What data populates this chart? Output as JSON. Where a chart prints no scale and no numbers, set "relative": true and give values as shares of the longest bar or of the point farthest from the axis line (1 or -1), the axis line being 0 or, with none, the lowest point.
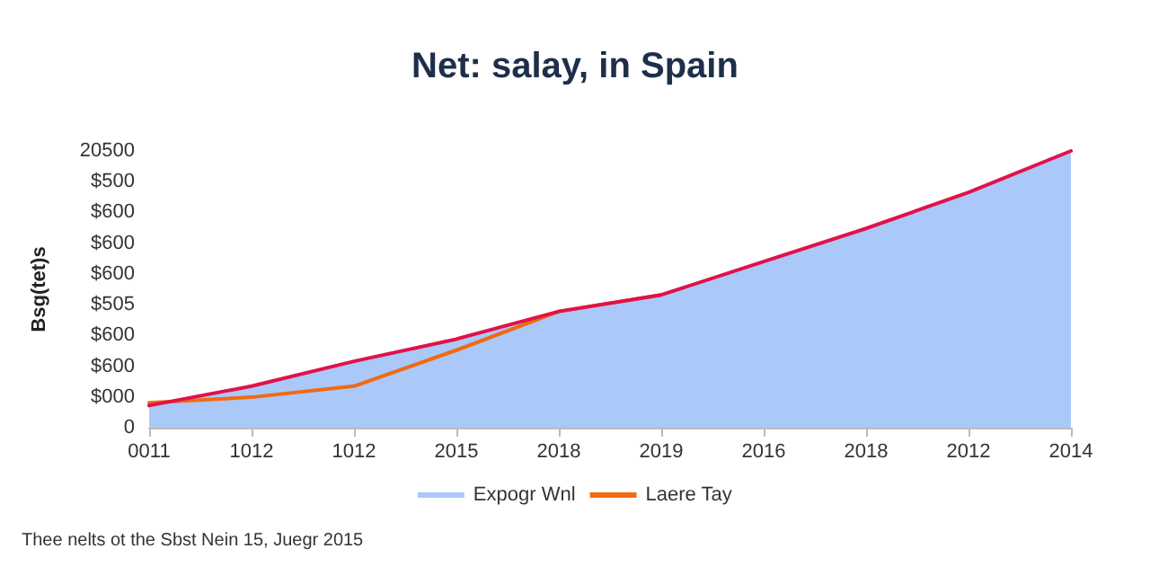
{
  "chart_data": {
    "type": "area",
    "title": "Net: salay, in Spain",
    "ylabel": "Bsg(tet)s",
    "relative": true,
    "categories": [
      "0011",
      "1012",
      "1012",
      "2015",
      "2018",
      "2019",
      "2016",
      "2018",
      "2012",
      "2014"
    ],
    "series": [
      {
        "name": "Expogr Wnl",
        "color": "#aac8f8",
        "values": [
          0.08,
          0.15,
          0.24,
          0.32,
          0.42,
          0.48,
          0.6,
          0.72,
          0.85,
          1
        ]
      },
      {
        "name": "Laere Tay",
        "type": "line",
        "color": "#f06a12",
        "values": [
          0.09,
          0.11,
          0.15,
          0.28,
          0.42,
          0.48,
          null,
          null,
          null,
          null
        ]
      },
      {
        "type": "line",
        "color": "#e0124a",
        "values": [
          0.08,
          0.15,
          0.24,
          0.32,
          0.42,
          0.48,
          0.6,
          0.72,
          0.85,
          1
        ]
      }
    ],
    "legend": "bottom",
    "marker": "none",
    "line_style": "solid",
    "annotations": [
      "20500",
      "$500",
      "$600",
      "$600",
      "$600",
      "$505",
      "$600",
      "$600",
      "$000",
      "0",
      "Thee nelts ot the Sbst Nein 15, Juegr 2015"
    ]
  }
}
